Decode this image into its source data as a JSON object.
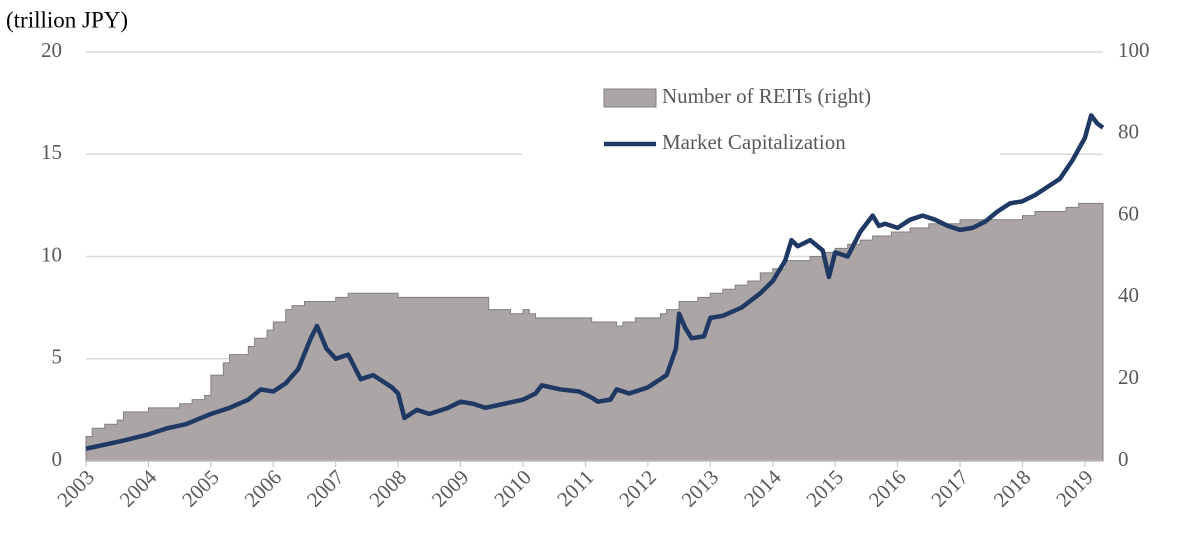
{
  "chart_data": {
    "type": "area-line",
    "y_axis_label": "(trillion JPY)",
    "xlim": [
      2003,
      2019.29
    ],
    "xticks": [
      2003,
      2004,
      2005,
      2006,
      2007,
      2008,
      2009,
      2010,
      2011,
      2012,
      2013,
      2014,
      2015,
      2016,
      2017,
      2018,
      2019
    ],
    "ylim": [
      0,
      20
    ],
    "yticks": [
      0,
      5,
      10,
      15,
      20
    ],
    "y2lim": [
      0,
      100
    ],
    "y2ticks": [
      0,
      20,
      40,
      60,
      80,
      100
    ],
    "grid": true,
    "series": [
      {
        "name": "Number of REITs (right)",
        "type": "area",
        "axis": "y2",
        "color": "#aba6a5",
        "step": true,
        "x": [
          2003.0,
          2003.1,
          2003.3,
          2003.5,
          2003.6,
          2004.0,
          2004.5,
          2004.7,
          2004.9,
          2005.0,
          2005.2,
          2005.3,
          2005.6,
          2005.7,
          2005.9,
          2006.0,
          2006.2,
          2006.3,
          2006.5,
          2007.0,
          2007.2,
          2008.0,
          2009.45,
          2009.8,
          2010.0,
          2010.1,
          2010.2,
          2011.1,
          2011.5,
          2011.6,
          2011.8,
          2012.2,
          2012.3,
          2012.5,
          2012.8,
          2013.0,
          2013.2,
          2013.4,
          2013.6,
          2013.8,
          2014.0,
          2014.2,
          2014.6,
          2014.8,
          2015.0,
          2015.2,
          2015.4,
          2015.6,
          2015.9,
          2016.2,
          2016.5,
          2017.0,
          2018.0,
          2018.2,
          2018.7,
          2018.9,
          2019.29
        ],
        "values": [
          6,
          8,
          9,
          10,
          12,
          13,
          14,
          15,
          16,
          21,
          24,
          26,
          28,
          30,
          32,
          34,
          37,
          38,
          39,
          40,
          41,
          40,
          37,
          36,
          37,
          36,
          35,
          34,
          33,
          34,
          35,
          36,
          37,
          39,
          40,
          41,
          42,
          43,
          44,
          46,
          47,
          49,
          50,
          51,
          52,
          53,
          54,
          55,
          56,
          57,
          58,
          59,
          60,
          61,
          62,
          63,
          63
        ]
      },
      {
        "name": "Market Capitalization",
        "type": "line",
        "color": "#1f3864",
        "x": [
          2003.0,
          2003.3,
          2003.6,
          2004.0,
          2004.3,
          2004.6,
          2005.0,
          2005.3,
          2005.6,
          2005.8,
          2006.0,
          2006.2,
          2006.4,
          2006.6,
          2006.7,
          2006.85,
          2007.0,
          2007.2,
          2007.4,
          2007.6,
          2007.9,
          2008.0,
          2008.1,
          2008.3,
          2008.5,
          2008.8,
          2009.0,
          2009.2,
          2009.4,
          2009.7,
          2010.0,
          2010.2,
          2010.3,
          2010.6,
          2010.9,
          2011.1,
          2011.2,
          2011.4,
          2011.5,
          2011.7,
          2012.0,
          2012.3,
          2012.45,
          2012.5,
          2012.6,
          2012.7,
          2012.9,
          2013.0,
          2013.2,
          2013.5,
          2013.8,
          2014.0,
          2014.2,
          2014.3,
          2014.4,
          2014.6,
          2014.8,
          2014.9,
          2015.0,
          2015.2,
          2015.4,
          2015.6,
          2015.7,
          2015.8,
          2016.0,
          2016.2,
          2016.4,
          2016.6,
          2016.8,
          2017.0,
          2017.2,
          2017.4,
          2017.6,
          2017.8,
          2018.0,
          2018.2,
          2018.4,
          2018.6,
          2018.8,
          2019.0,
          2019.1,
          2019.2,
          2019.29
        ],
        "values": [
          0.6,
          0.8,
          1.0,
          1.3,
          1.6,
          1.8,
          2.3,
          2.6,
          3.0,
          3.5,
          3.4,
          3.8,
          4.5,
          6.0,
          6.6,
          5.5,
          5.0,
          5.2,
          4.0,
          4.2,
          3.6,
          3.3,
          2.1,
          2.5,
          2.3,
          2.6,
          2.9,
          2.8,
          2.6,
          2.8,
          3.0,
          3.3,
          3.7,
          3.5,
          3.4,
          3.1,
          2.9,
          3.0,
          3.5,
          3.3,
          3.6,
          4.2,
          5.5,
          7.2,
          6.5,
          6.0,
          6.1,
          7.0,
          7.1,
          7.5,
          8.2,
          8.8,
          9.8,
          10.8,
          10.5,
          10.8,
          10.3,
          9.0,
          10.2,
          10.0,
          11.2,
          12.0,
          11.5,
          11.6,
          11.4,
          11.8,
          12.0,
          11.8,
          11.5,
          11.3,
          11.4,
          11.7,
          12.2,
          12.6,
          12.7,
          13.0,
          13.4,
          13.8,
          14.7,
          15.8,
          16.9,
          16.5,
          16.3
        ]
      }
    ]
  }
}
